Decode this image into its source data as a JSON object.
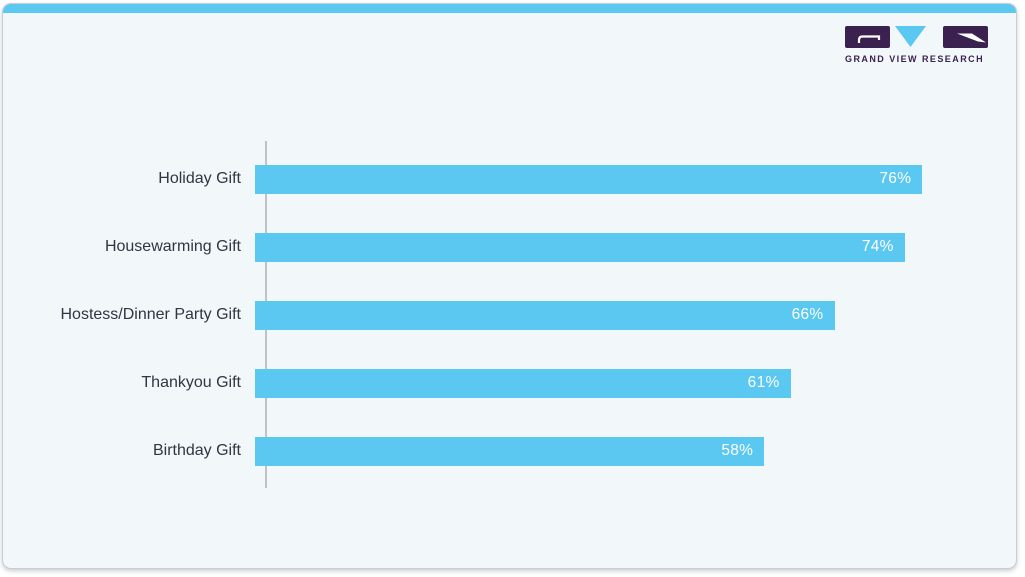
{
  "logo": {
    "text": "GRAND VIEW RESEARCH"
  },
  "chart_data": {
    "type": "bar",
    "orientation": "horizontal",
    "title": "",
    "xlabel": "",
    "ylabel": "",
    "categories": [
      "Holiday Gift",
      "Housewarming Gift",
      "Hostess/Dinner Party Gift",
      "Thankyou Gift",
      "Birthday Gift"
    ],
    "values": [
      76,
      74,
      66,
      61,
      58
    ],
    "value_labels": [
      "76%",
      "74%",
      "66%",
      "61%",
      "58%"
    ],
    "unit": "%",
    "xlim": [
      0,
      82
    ],
    "grid": false,
    "legend": false,
    "value_label_position": "inside-end"
  },
  "colors": {
    "bar": "#5BC8F1",
    "top_strip": "#5BC8F1",
    "card_background": "#F2F7FA",
    "card_border": "#C8CED4",
    "axis_line": "#C0C3C6",
    "category_text": "#2F3641",
    "value_text": "#FFFFFF",
    "logo_purple": "#3A2150"
  }
}
